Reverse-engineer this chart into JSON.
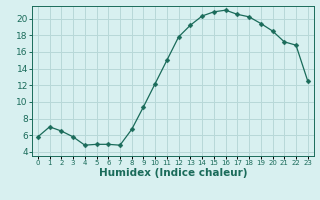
{
  "x": [
    0,
    1,
    2,
    3,
    4,
    5,
    6,
    7,
    8,
    9,
    10,
    11,
    12,
    13,
    14,
    15,
    16,
    17,
    18,
    19,
    20,
    21,
    22,
    23
  ],
  "y": [
    5.8,
    7.0,
    6.5,
    5.8,
    4.8,
    4.9,
    4.9,
    4.8,
    6.7,
    9.4,
    12.2,
    15.0,
    17.8,
    19.2,
    20.3,
    20.8,
    21.0,
    20.5,
    20.2,
    19.4,
    18.5,
    17.2,
    16.8,
    12.5
  ],
  "line_color": "#1a6b5a",
  "marker": "D",
  "marker_size": 2.5,
  "bg_color": "#d8f0f0",
  "grid_color": "#b8d8d8",
  "xlabel": "Humidex (Indice chaleur)",
  "ylim": [
    3.5,
    21.5
  ],
  "xlim": [
    -0.5,
    23.5
  ],
  "yticks": [
    4,
    6,
    8,
    10,
    12,
    14,
    16,
    18,
    20
  ],
  "xtick_labels": [
    "0",
    "1",
    "2",
    "3",
    "4",
    "5",
    "6",
    "7",
    "8",
    "9",
    "10",
    "11",
    "12",
    "13",
    "14",
    "15",
    "16",
    "17",
    "18",
    "19",
    "20",
    "21",
    "22",
    "23"
  ],
  "tick_color": "#1a6b5a",
  "label_fontsize": 6.5,
  "xtick_fontsize": 5.0,
  "xlabel_fontsize": 7.5
}
